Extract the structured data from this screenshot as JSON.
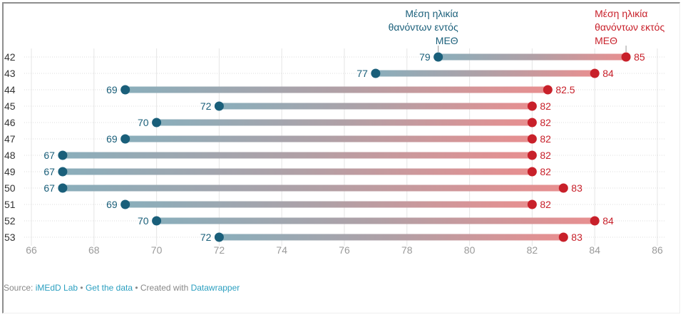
{
  "chart_data": {
    "type": "dumbbell",
    "title": "",
    "xlabel": "",
    "ylabel": "",
    "xlim": [
      66,
      86
    ],
    "x_ticks": [
      66,
      68,
      70,
      72,
      74,
      76,
      78,
      80,
      82,
      84,
      86
    ],
    "grid": true,
    "categories": [
      "42",
      "43",
      "44",
      "45",
      "46",
      "47",
      "48",
      "49",
      "50",
      "51",
      "52",
      "53"
    ],
    "series": [
      {
        "name": "Μέση ηλικία θανόντων εντός ΜΕΘ",
        "label_lines": [
          "Μέση ηλικία",
          "θανόντων εντός",
          "ΜΕΘ"
        ],
        "color": "#1a5f7a",
        "values": [
          79,
          77,
          69,
          72,
          70,
          69,
          67,
          67,
          67,
          69,
          70,
          72
        ],
        "labels": [
          "79",
          "77",
          "69",
          "72",
          "70",
          "69",
          "67",
          "67",
          "67",
          "69",
          "70",
          "72"
        ]
      },
      {
        "name": "Μέση ηλικία θανόντων εκτός ΜΕΘ",
        "label_lines": [
          "Μέση ηλικία",
          "θανόντων εκτός",
          "ΜΕΘ"
        ],
        "color": "#c8202a",
        "values": [
          85,
          84,
          82.5,
          82,
          82,
          82,
          82,
          82,
          83,
          82,
          84,
          83
        ],
        "labels": [
          "85",
          "84",
          "82.5",
          "82",
          "82",
          "82",
          "82",
          "82",
          "83",
          "82",
          "84",
          "83"
        ]
      }
    ],
    "legend": "top, annotated above first row",
    "bar_gradient": [
      "#8aaebb",
      "#e88f90"
    ]
  },
  "footer": {
    "source_prefix": "Source: ",
    "source_link": "iMEdD Lab",
    "separator": " • ",
    "data_link": "Get the data",
    "created_prefix": "Created with ",
    "created_link": "Datawrapper"
  }
}
